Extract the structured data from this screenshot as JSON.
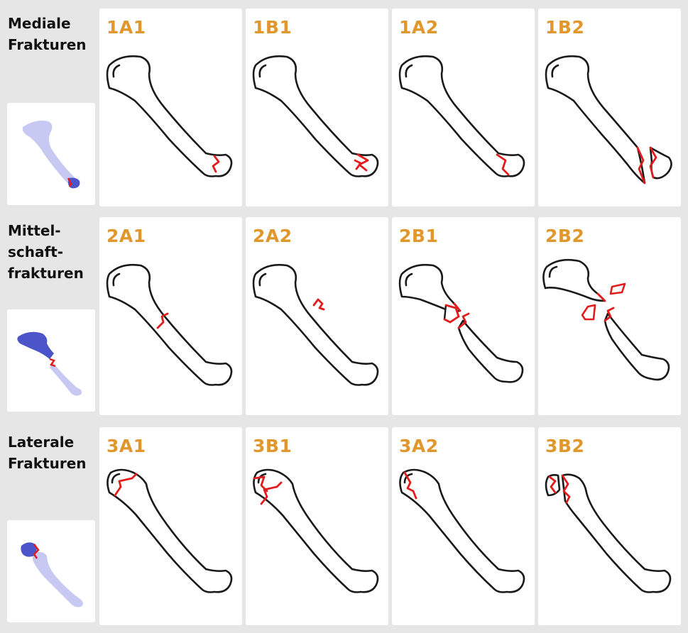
{
  "rows": [
    {
      "label": "Mediale\nFrakturen",
      "region": "medial",
      "panels": [
        {
          "code": "1A1"
        },
        {
          "code": "1B1"
        },
        {
          "code": "1A2"
        },
        {
          "code": "1B2"
        }
      ]
    },
    {
      "label": "Mittel-\nschaft-\nfrakturen",
      "region": "shaft",
      "panels": [
        {
          "code": "2A1"
        },
        {
          "code": "2A2"
        },
        {
          "code": "2B1"
        },
        {
          "code": "2B2"
        }
      ]
    },
    {
      "label": "Laterale\nFrakturen",
      "region": "lateral",
      "panels": [
        {
          "code": "3A1"
        },
        {
          "code": "3B1"
        },
        {
          "code": "3A2"
        },
        {
          "code": "3B2"
        }
      ]
    }
  ],
  "colors": {
    "background": "#e6e6e6",
    "code_text": "#e0972d",
    "fracture_line": "#e21c1c",
    "highlight": "#4b55c9",
    "bone_thumbnail": "#c7c9f2"
  }
}
